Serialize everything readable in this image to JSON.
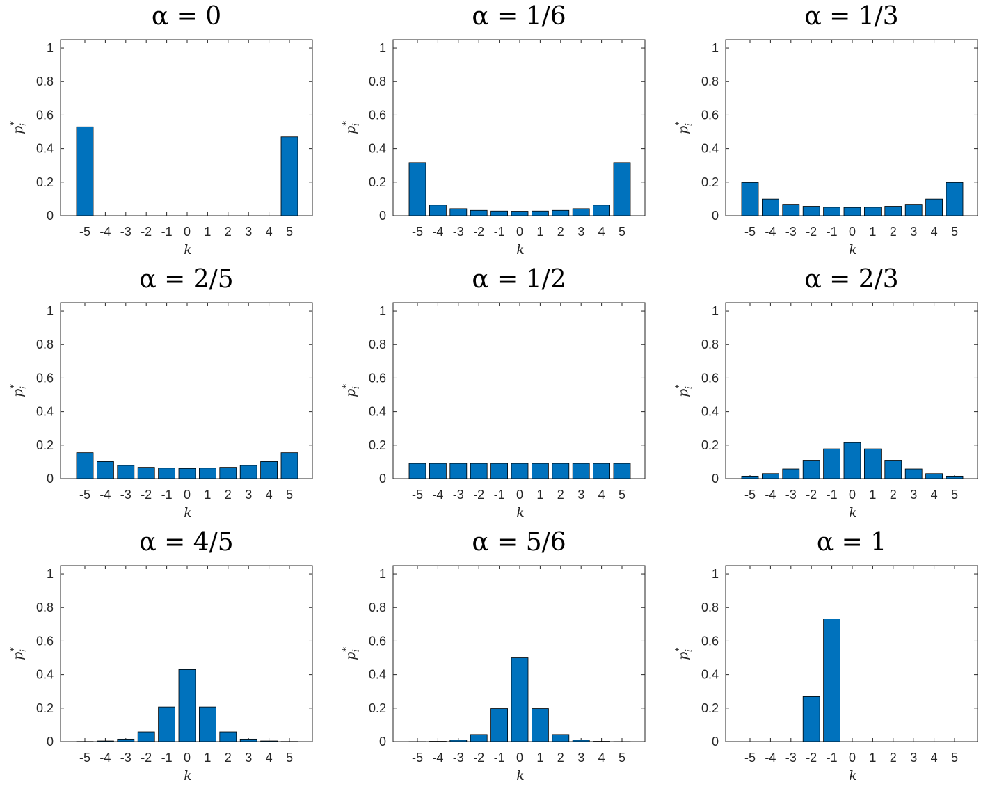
{
  "chart_data": {
    "type": "bar",
    "layout": "3x3 grid",
    "bar_color": "#0072BD",
    "bar_edge_color": "#000000",
    "xlabel": "k",
    "ylabel": {
      "base": "p",
      "superscript": "*",
      "subscript": "i"
    },
    "ylim": [
      0,
      1.05
    ],
    "yticks": [
      0,
      0.2,
      0.4,
      0.6,
      0.8,
      1
    ],
    "ytick_labels": [
      "0",
      "0.2",
      "0.4",
      "0.6",
      "0.8",
      "1"
    ],
    "categories": [
      "-5",
      "-4",
      "-3",
      "-2",
      "-1",
      "0",
      "1",
      "2",
      "3",
      "4",
      "5"
    ],
    "panels": [
      {
        "title": "α = 0",
        "values": [
          0.53,
          0,
          0,
          0,
          0,
          0,
          0,
          0,
          0,
          0,
          0.47
        ]
      },
      {
        "title": "α = 1/6",
        "values": [
          0.316,
          0.063,
          0.042,
          0.032,
          0.028,
          0.027,
          0.028,
          0.032,
          0.042,
          0.063,
          0.316
        ]
      },
      {
        "title": "α = 1/3",
        "values": [
          0.198,
          0.099,
          0.068,
          0.056,
          0.05,
          0.049,
          0.05,
          0.056,
          0.068,
          0.099,
          0.198
        ]
      },
      {
        "title": "α = 2/5",
        "values": [
          0.155,
          0.102,
          0.079,
          0.068,
          0.063,
          0.061,
          0.063,
          0.068,
          0.079,
          0.102,
          0.155
        ]
      },
      {
        "title": "α = 1/2",
        "values": [
          0.0909,
          0.0909,
          0.0909,
          0.0909,
          0.0909,
          0.0909,
          0.0909,
          0.0909,
          0.0909,
          0.0909,
          0.0909
        ]
      },
      {
        "title": "α = 2/3",
        "values": [
          0.015,
          0.03,
          0.058,
          0.11,
          0.178,
          0.215,
          0.178,
          0.11,
          0.058,
          0.03,
          0.015
        ]
      },
      {
        "title": "α = 4/5",
        "values": [
          0.001,
          0.004,
          0.015,
          0.058,
          0.207,
          0.43,
          0.207,
          0.058,
          0.015,
          0.004,
          0.001
        ]
      },
      {
        "title": "α = 5/6",
        "values": [
          0.0005,
          0.002,
          0.009,
          0.042,
          0.197,
          0.5,
          0.197,
          0.042,
          0.009,
          0.002,
          0.0005
        ]
      },
      {
        "title": "α = 1",
        "values": [
          0,
          0,
          0,
          0.268,
          0.732,
          0,
          0,
          0,
          0,
          0,
          0
        ]
      }
    ]
  }
}
